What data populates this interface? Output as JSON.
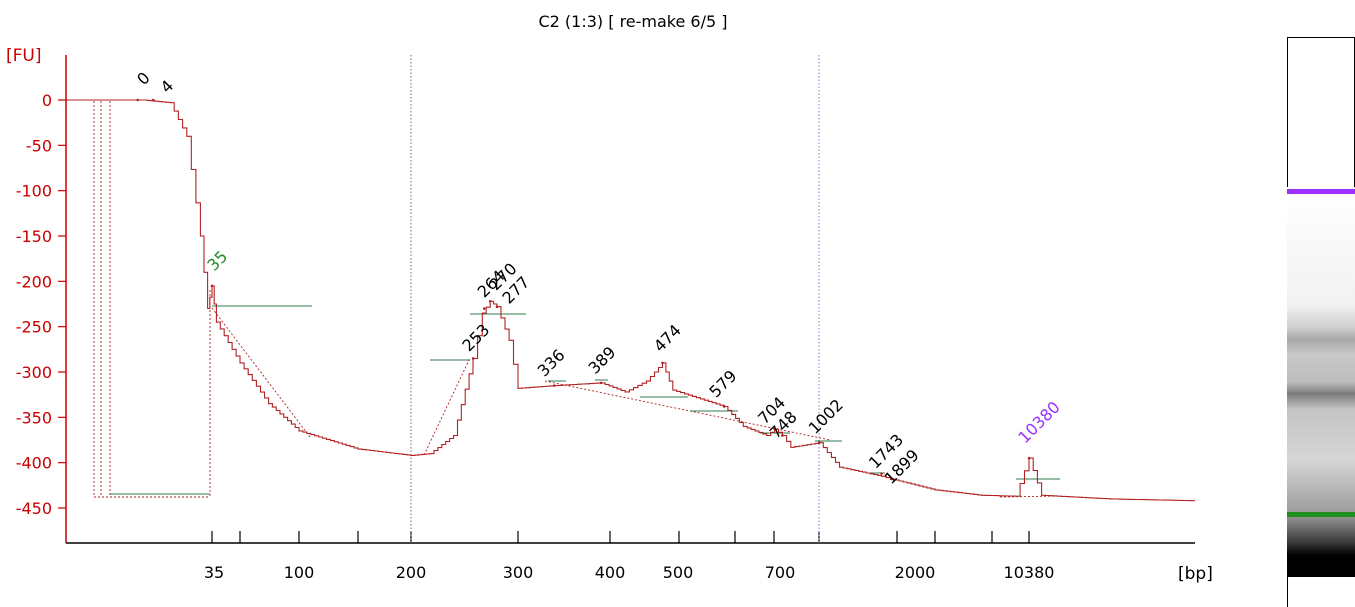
{
  "chart_data": {
    "type": "line",
    "title": "C2 (1:3)  [ re-make 6/5 ]",
    "ylabel": "[FU]",
    "xlabel": "[bp]",
    "ylim": [
      -475,
      40
    ],
    "yticks": [
      0,
      -50,
      -100,
      -150,
      -200,
      -250,
      -300,
      -350,
      -400,
      -450
    ],
    "xticks": [
      "35",
      "100",
      "200",
      "300",
      "400",
      "500",
      "700",
      "2000",
      "10380"
    ],
    "x_marker_labels": [
      "35",
      "10380"
    ],
    "ladder_positions_bp": [
      35,
      50,
      100,
      150,
      200,
      300,
      400,
      500,
      600,
      700,
      1000,
      2000,
      3000,
      7000,
      10380
    ],
    "vlines_bp": [
      200,
      1000
    ],
    "trace_color": "#b22222",
    "marker_colors": {
      "lower": "#228b22",
      "upper": "#9b30ff"
    },
    "series": [
      {
        "values": [
          {
            "x": 5,
            "y": 0
          },
          {
            "x": 14,
            "y": 0
          },
          {
            "x": 20,
            "y": -3
          },
          {
            "x": 25,
            "y": -40
          },
          {
            "x": 30,
            "y": -150
          },
          {
            "x": 33,
            "y": -230
          },
          {
            "x": 35,
            "y": -205
          },
          {
            "x": 37,
            "y": -245
          },
          {
            "x": 50,
            "y": -290
          },
          {
            "x": 70,
            "y": -335
          },
          {
            "x": 100,
            "y": -365
          },
          {
            "x": 150,
            "y": -385
          },
          {
            "x": 200,
            "y": -392
          },
          {
            "x": 215,
            "y": -390
          },
          {
            "x": 235,
            "y": -370
          },
          {
            "x": 253,
            "y": -285
          },
          {
            "x": 262,
            "y": -235
          },
          {
            "x": 270,
            "y": -222
          },
          {
            "x": 277,
            "y": -228
          },
          {
            "x": 290,
            "y": -265
          },
          {
            "x": 300,
            "y": -318
          },
          {
            "x": 336,
            "y": -315
          },
          {
            "x": 389,
            "y": -312
          },
          {
            "x": 420,
            "y": -322
          },
          {
            "x": 450,
            "y": -310
          },
          {
            "x": 474,
            "y": -290
          },
          {
            "x": 490,
            "y": -320
          },
          {
            "x": 579,
            "y": -338
          },
          {
            "x": 620,
            "y": -360
          },
          {
            "x": 680,
            "y": -370
          },
          {
            "x": 704,
            "y": -363
          },
          {
            "x": 748,
            "y": -370
          },
          {
            "x": 800,
            "y": -383
          },
          {
            "x": 1002,
            "y": -378
          },
          {
            "x": 1200,
            "y": -405
          },
          {
            "x": 1743,
            "y": -415
          },
          {
            "x": 1899,
            "y": -418
          },
          {
            "x": 3000,
            "y": -430
          },
          {
            "x": 6000,
            "y": -436
          },
          {
            "x": 9000,
            "y": -437
          },
          {
            "x": 10380,
            "y": -395
          },
          {
            "x": 11500,
            "y": -436
          },
          {
            "x": 20000,
            "y": -440
          },
          {
            "x": 40000,
            "y": -442
          }
        ]
      }
    ],
    "peak_labels": [
      {
        "label": "0",
        "x": 13,
        "y": 0
      },
      {
        "label": "4",
        "x": 16,
        "y": 0
      },
      {
        "label": "35",
        "x": 35,
        "y": -205
      },
      {
        "label": "253",
        "x": 253,
        "y": -285
      },
      {
        "label": "264",
        "x": 264,
        "y": -230
      },
      {
        "label": "270",
        "x": 270,
        "y": -222
      },
      {
        "label": "277",
        "x": 277,
        "y": -228
      },
      {
        "label": "336",
        "x": 336,
        "y": -315
      },
      {
        "label": "389",
        "x": 389,
        "y": -312
      },
      {
        "label": "474",
        "x": 474,
        "y": -290
      },
      {
        "label": "579",
        "x": 579,
        "y": -338
      },
      {
        "label": "704",
        "x": 704,
        "y": -363
      },
      {
        "label": "748",
        "x": 748,
        "y": -370
      },
      {
        "label": "1002",
        "x": 1002,
        "y": -378
      },
      {
        "label": "1743",
        "x": 1743,
        "y": -412
      },
      {
        "label": "1899",
        "x": 1899,
        "y": -418
      },
      {
        "label": "10380",
        "x": 10380,
        "y": -395
      }
    ]
  }
}
